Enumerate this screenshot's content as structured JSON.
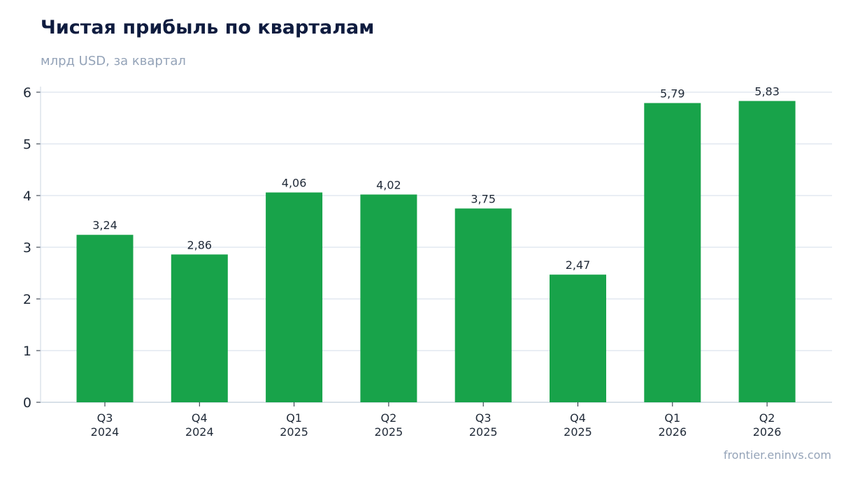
{
  "header": {
    "title": "Чистая прибыль по кварталам",
    "subtitle": "млрд USD, за квартал"
  },
  "footer": {
    "source": "frontier.eninvs.com"
  },
  "colors": {
    "bar": "#18a34a",
    "grid": "#e2e8f0",
    "axis": "#cbd5e1"
  },
  "chart_data": {
    "type": "bar",
    "title": "Чистая прибыль по кварталам",
    "subtitle": "млрд USD, за квартал",
    "xlabel": "",
    "ylabel": "",
    "categories": [
      [
        "Q3",
        "2024"
      ],
      [
        "Q4",
        "2024"
      ],
      [
        "Q1",
        "2025"
      ],
      [
        "Q2",
        "2025"
      ],
      [
        "Q3",
        "2025"
      ],
      [
        "Q4",
        "2025"
      ],
      [
        "Q1",
        "2026"
      ],
      [
        "Q2",
        "2026"
      ]
    ],
    "values": [
      3.24,
      2.86,
      4.06,
      4.02,
      3.75,
      2.47,
      5.79,
      5.83
    ],
    "value_labels": [
      "3,24",
      "2,86",
      "4,06",
      "4,02",
      "3,75",
      "2,47",
      "5,79",
      "5,83"
    ],
    "yticks": [
      0,
      1,
      2,
      3,
      4,
      5,
      6
    ],
    "ylim": [
      0,
      6
    ],
    "grid": true,
    "legend": "none"
  }
}
